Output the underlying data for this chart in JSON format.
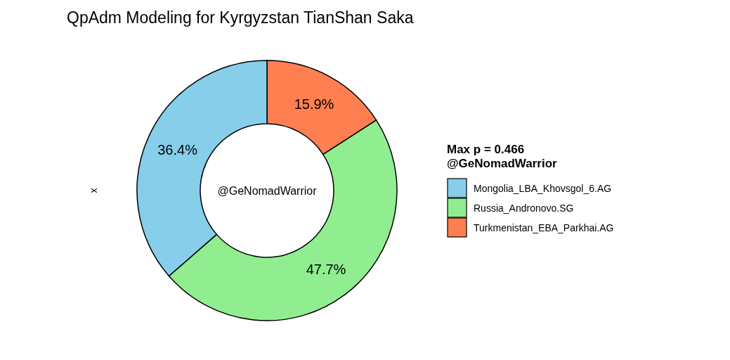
{
  "chart_data": {
    "type": "donut",
    "title": "QpAdm Modeling for Kyrgyzstan TianShan Saka",
    "ylabel": "x",
    "legend_title": "Max p = 0.466\n@GeNomadWarrior",
    "annotations": [
      "@GeNomadWarrior"
    ],
    "categories": [
      "Mongolia_LBA_Khovsgol_6.AG",
      "Russia_Andronovo.SG",
      "Turkmenistan_EBA_Parkhai.AG"
    ],
    "values": [
      36.4,
      47.7,
      15.9
    ],
    "value_labels": [
      "36.4%",
      "47.7%",
      "15.9%"
    ],
    "colors": [
      "#87ceeb",
      "#90ee90",
      "#ff7f50"
    ],
    "legend": "right"
  }
}
